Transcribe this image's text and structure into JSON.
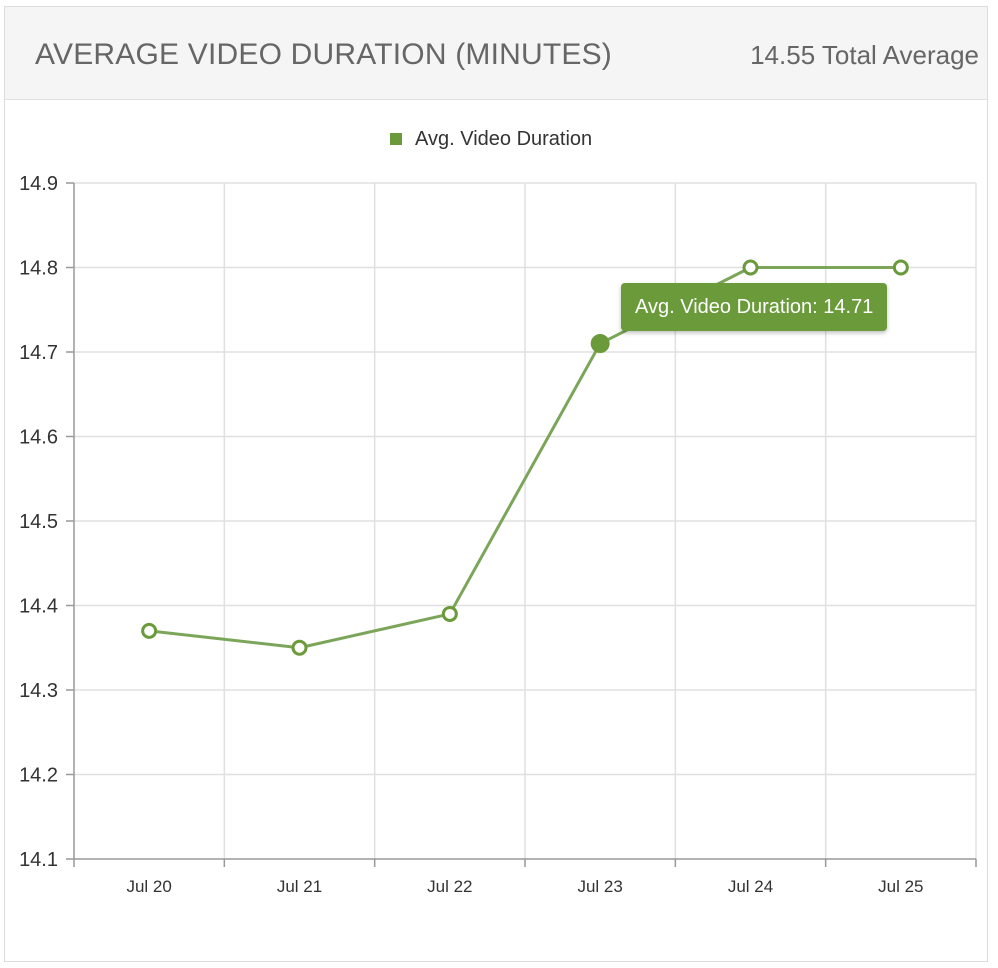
{
  "panel": {
    "title": "AVERAGE VIDEO DURATION (MINUTES)",
    "summary": "14.55 Total Average"
  },
  "colors": {
    "series": "#6a9a3a",
    "line": "#7ba65a",
    "grid": "#e0e0e0",
    "axis": "#999999",
    "text": "#333333",
    "header_bg": "#f5f5f5"
  },
  "tooltip": {
    "series_name": "Avg. Video Duration",
    "value": "14.71"
  },
  "chart_data": {
    "type": "line",
    "title": "",
    "xlabel": "",
    "ylabel": "",
    "categories": [
      "Jul 20",
      "Jul 21",
      "Jul 22",
      "Jul 23",
      "Jul 24",
      "Jul 25"
    ],
    "series": [
      {
        "name": "Avg. Video Duration",
        "values": [
          14.37,
          14.35,
          14.39,
          14.71,
          14.8,
          14.8
        ]
      }
    ],
    "ylim": [
      14.1,
      14.9
    ],
    "yticks": [
      "14.1",
      "14.2",
      "14.3",
      "14.4",
      "14.5",
      "14.6",
      "14.7",
      "14.8",
      "14.9"
    ],
    "ytick_values": [
      14.1,
      14.2,
      14.3,
      14.4,
      14.5,
      14.6,
      14.7,
      14.8,
      14.9
    ],
    "grid": true,
    "legend": "top-center",
    "highlighted_category": "Jul 23"
  }
}
